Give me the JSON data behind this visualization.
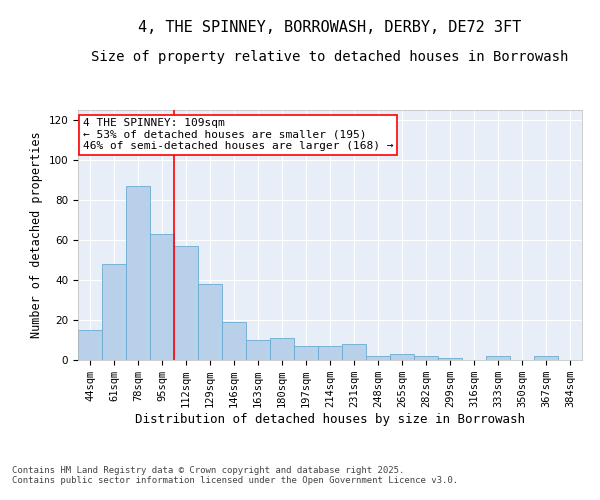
{
  "title": "4, THE SPINNEY, BORROWASH, DERBY, DE72 3FT",
  "subtitle": "Size of property relative to detached houses in Borrowash",
  "xlabel": "Distribution of detached houses by size in Borrowash",
  "ylabel": "Number of detached properties",
  "categories": [
    "44sqm",
    "61sqm",
    "78sqm",
    "95sqm",
    "112sqm",
    "129sqm",
    "146sqm",
    "163sqm",
    "180sqm",
    "197sqm",
    "214sqm",
    "231sqm",
    "248sqm",
    "265sqm",
    "282sqm",
    "299sqm",
    "316sqm",
    "333sqm",
    "350sqm",
    "367sqm",
    "384sqm"
  ],
  "values": [
    15,
    48,
    87,
    63,
    57,
    38,
    19,
    10,
    11,
    7,
    7,
    8,
    2,
    3,
    2,
    1,
    0,
    2,
    0,
    2,
    0
  ],
  "bar_color": "#b8d0ea",
  "bar_edge_color": "#6aabd2",
  "background_color": "#e8eef8",
  "vline_x_index": 4,
  "vline_color": "red",
  "annotation_text": "4 THE SPINNEY: 109sqm\n← 53% of detached houses are smaller (195)\n46% of semi-detached houses are larger (168) →",
  "annotation_box_color": "white",
  "annotation_box_edge": "red",
  "ylim": [
    0,
    125
  ],
  "yticks": [
    0,
    20,
    40,
    60,
    80,
    100,
    120
  ],
  "footer_text": "Contains HM Land Registry data © Crown copyright and database right 2025.\nContains public sector information licensed under the Open Government Licence v3.0.",
  "title_fontsize": 11,
  "subtitle_fontsize": 10,
  "xlabel_fontsize": 9,
  "ylabel_fontsize": 8.5,
  "tick_fontsize": 7.5,
  "annotation_fontsize": 8,
  "footer_fontsize": 6.5
}
